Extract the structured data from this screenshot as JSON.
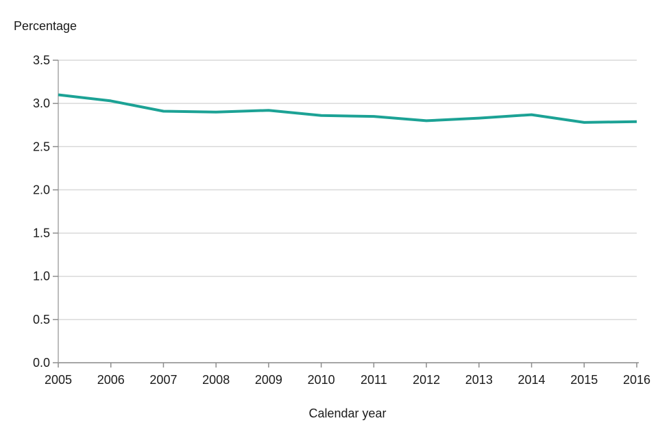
{
  "chart_data": {
    "type": "line",
    "title": "Percentage",
    "xlabel": "Calendar year",
    "ylabel": "",
    "categories": [
      "2005",
      "2006",
      "2007",
      "2008",
      "2009",
      "2010",
      "2011",
      "2012",
      "2013",
      "2014",
      "2015",
      "2016"
    ],
    "series": [
      {
        "name": "Percentage",
        "color": "#1CA295",
        "values": [
          3.1,
          3.03,
          2.91,
          2.9,
          2.92,
          2.86,
          2.85,
          2.8,
          2.83,
          2.87,
          2.78,
          2.79
        ]
      }
    ],
    "ylim": [
      0.0,
      3.5
    ],
    "ytick_step": 0.5,
    "ytick_labels": [
      "0.0",
      "0.5",
      "1.0",
      "1.5",
      "2.0",
      "2.5",
      "3.0",
      "3.5"
    ],
    "grid": "horizontal",
    "legend": "none",
    "colors": {
      "line": "#1CA295",
      "gridline": "#D9D9D9",
      "axis": "#A6A6A6",
      "tick": "#8C8C8C",
      "text": "#1A1A1A",
      "background": "#FFFFFF"
    }
  }
}
